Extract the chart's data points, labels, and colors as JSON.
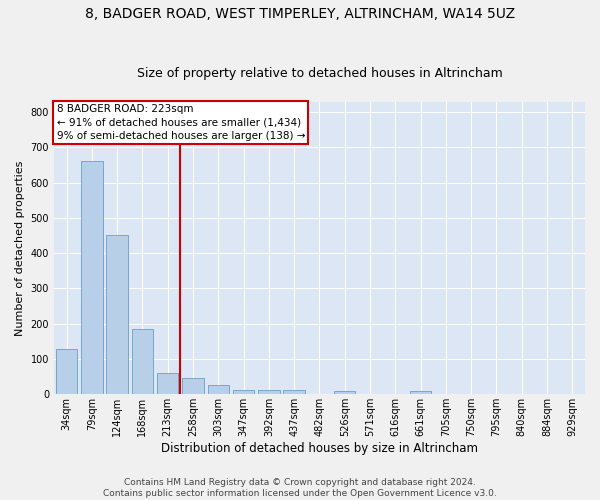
{
  "title": "8, BADGER ROAD, WEST TIMPERLEY, ALTRINCHAM, WA14 5UZ",
  "subtitle": "Size of property relative to detached houses in Altrincham",
  "xlabel": "Distribution of detached houses by size in Altrincham",
  "ylabel": "Number of detached properties",
  "categories": [
    "34sqm",
    "79sqm",
    "124sqm",
    "168sqm",
    "213sqm",
    "258sqm",
    "303sqm",
    "347sqm",
    "392sqm",
    "437sqm",
    "482sqm",
    "526sqm",
    "571sqm",
    "616sqm",
    "661sqm",
    "705sqm",
    "750sqm",
    "795sqm",
    "840sqm",
    "884sqm",
    "929sqm"
  ],
  "values": [
    128,
    660,
    452,
    185,
    60,
    45,
    25,
    12,
    13,
    12,
    0,
    8,
    0,
    0,
    8,
    0,
    0,
    0,
    0,
    0,
    0
  ],
  "bar_color": "#b8cfe8",
  "bar_edge_color": "#6a9fc8",
  "bg_color": "#dce6f5",
  "grid_color": "#ffffff",
  "vline_x": 4.5,
  "vline_color": "#cc0000",
  "annotation_line1": "8 BADGER ROAD: 223sqm",
  "annotation_line2": "← 91% of detached houses are smaller (1,434)",
  "annotation_line3": "9% of semi-detached houses are larger (138) →",
  "annotation_box_color": "#cc0000",
  "ylim": [
    0,
    830
  ],
  "yticks": [
    0,
    100,
    200,
    300,
    400,
    500,
    600,
    700,
    800
  ],
  "footer": "Contains HM Land Registry data © Crown copyright and database right 2024.\nContains public sector information licensed under the Open Government Licence v3.0.",
  "title_fontsize": 10,
  "subtitle_fontsize": 9,
  "xlabel_fontsize": 8.5,
  "ylabel_fontsize": 8,
  "tick_fontsize": 7,
  "annotation_fontsize": 7.5,
  "footer_fontsize": 6.5,
  "fig_bg": "#f0f0f0"
}
